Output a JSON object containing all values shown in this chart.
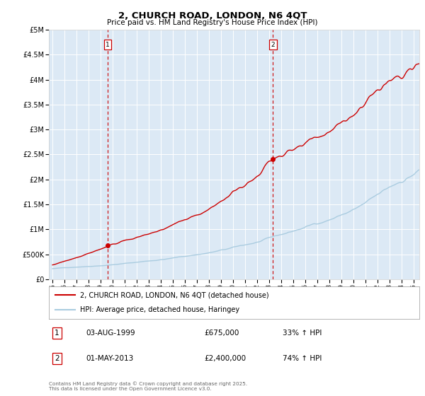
{
  "title": "2, CHURCH ROAD, LONDON, N6 4QT",
  "subtitle": "Price paid vs. HM Land Registry's House Price Index (HPI)",
  "background_color": "#ffffff",
  "plot_bg_color": "#dce9f5",
  "grid_color": "#ffffff",
  "red_line_color": "#cc0000",
  "blue_line_color": "#aacce0",
  "vline_color": "#cc0000",
  "legend_label_red": "2, CHURCH ROAD, LONDON, N6 4QT (detached house)",
  "legend_label_blue": "HPI: Average price, detached house, Haringey",
  "annotation1_box": "1",
  "annotation2_box": "2",
  "table_row1": [
    "1",
    "03-AUG-1999",
    "£675,000",
    "33% ↑ HPI"
  ],
  "table_row2": [
    "2",
    "01-MAY-2013",
    "£2,400,000",
    "74% ↑ HPI"
  ],
  "footer": "Contains HM Land Registry data © Crown copyright and database right 2025.\nThis data is licensed under the Open Government Licence v3.0.",
  "ylim": [
    0,
    5000000
  ],
  "yticks": [
    0,
    500000,
    1000000,
    1500000,
    2000000,
    2500000,
    3000000,
    3500000,
    4000000,
    4500000,
    5000000
  ],
  "ytick_labels": [
    "£0",
    "£500K",
    "£1M",
    "£1.5M",
    "£2M",
    "£2.5M",
    "£3M",
    "£3.5M",
    "£4M",
    "£4.5M",
    "£5M"
  ],
  "vline1_x": 1999.58,
  "vline2_x": 2013.33,
  "marker1_y": 675000,
  "marker2_y": 2400000,
  "xlim_left": 1994.7,
  "xlim_right": 2025.5
}
